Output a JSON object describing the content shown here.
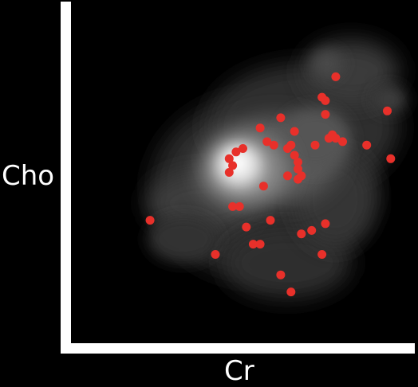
{
  "chart_data": {
    "type": "scatter",
    "title": "",
    "xlabel": "Cr",
    "ylabel": "Cho",
    "xlim": [
      0,
      100
    ],
    "ylim": [
      0,
      100
    ],
    "grid": false,
    "background": "density-heatmap",
    "colors": {
      "background": "#000000",
      "axes": "#ffffff",
      "points": "#e8302a",
      "text": "#ffffff"
    },
    "series": [
      {
        "x": [
          77,
          73,
          74,
          61,
          74,
          55,
          65,
          92,
          57,
          76,
          64,
          59,
          75,
          77,
          79,
          71,
          86,
          50,
          48,
          46,
          63,
          65,
          66,
          93,
          47,
          66,
          63,
          66,
          67,
          46,
          56,
          47,
          49,
          58,
          51,
          23,
          67,
          70,
          74,
          53,
          42,
          55,
          73,
          61,
          64
        ],
        "y": [
          78,
          72,
          71,
          66,
          67,
          63,
          62,
          68,
          59,
          61,
          58,
          58,
          60,
          60,
          59,
          58,
          58,
          57,
          56,
          54,
          57,
          55,
          53,
          54,
          52,
          51,
          49,
          48,
          49,
          50,
          46,
          40,
          40,
          36,
          34,
          36,
          32,
          33,
          35,
          29,
          26,
          29,
          26,
          20,
          15
        ]
      }
    ]
  }
}
